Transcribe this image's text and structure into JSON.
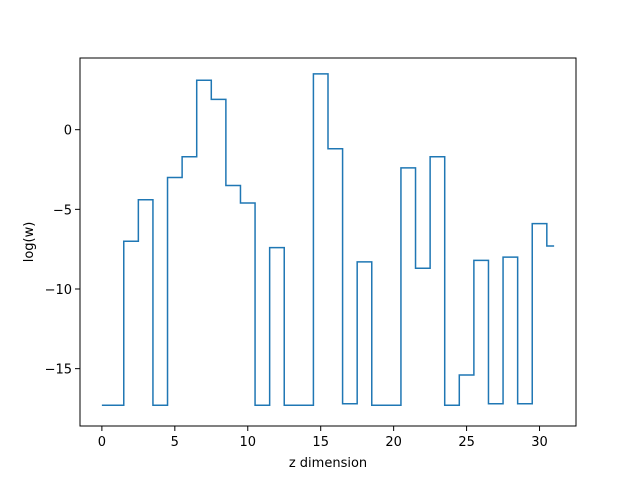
{
  "chart_data": {
    "type": "line",
    "drawstyle": "steps-mid",
    "title": "",
    "xlabel": "z dimension",
    "ylabel": "log(w)",
    "xlim": [
      -1.5,
      32.5
    ],
    "ylim": [
      -18.6,
      4.5
    ],
    "xticks": [
      0,
      5,
      10,
      15,
      20,
      25,
      30
    ],
    "yticks": [
      -15,
      -10,
      -5,
      0
    ],
    "ytick_labels": [
      "−15",
      "−10",
      "−5",
      "0"
    ],
    "grid": false,
    "color": "#1f77b4",
    "series": [
      {
        "x": [
          0,
          1,
          2,
          3,
          4,
          5,
          6,
          7,
          8,
          9,
          10,
          11,
          12,
          13,
          14,
          15,
          16,
          17,
          18,
          19,
          20,
          21,
          22,
          23,
          24,
          25,
          26,
          27,
          28,
          29,
          30,
          31
        ],
        "values": [
          -17.3,
          -17.3,
          -7.0,
          -4.4,
          -17.3,
          -3.0,
          -1.7,
          3.1,
          1.9,
          -3.5,
          -4.6,
          -17.3,
          -7.4,
          -17.3,
          -17.3,
          3.5,
          -1.2,
          -17.2,
          -8.3,
          -17.3,
          -17.3,
          -2.4,
          -8.7,
          -1.7,
          -17.3,
          -15.4,
          -8.2,
          -17.2,
          -8.0,
          -17.2,
          -5.9,
          -7.3
        ]
      }
    ]
  }
}
